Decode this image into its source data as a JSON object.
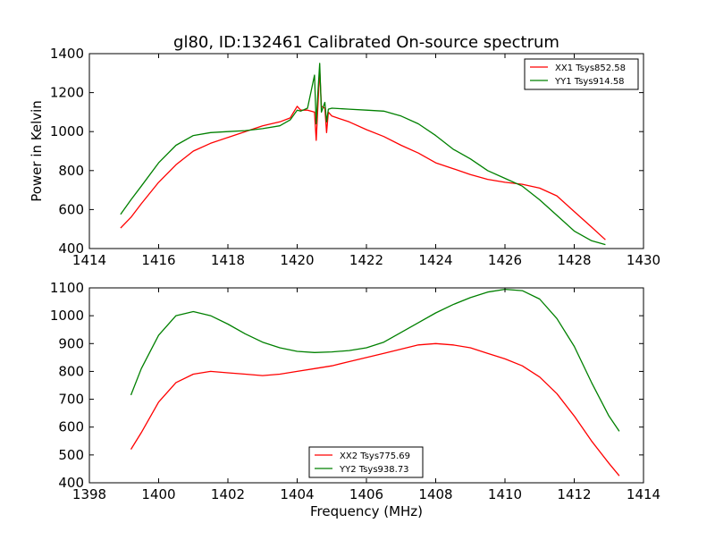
{
  "figure": {
    "title": "gl80, ID:132461 Calibrated On-source spectrum",
    "xlabel": "Frequency (MHz)",
    "ylabel": "Power in Kelvin"
  },
  "chart_data": [
    {
      "type": "line",
      "title": "gl80, ID:132461 Calibrated On-source spectrum",
      "ylabel": "Power in Kelvin",
      "xlim": [
        1414,
        1430
      ],
      "ylim": [
        400,
        1400
      ],
      "xticks": [
        1414,
        1416,
        1418,
        1420,
        1422,
        1424,
        1426,
        1428,
        1430
      ],
      "yticks": [
        400,
        600,
        800,
        1000,
        1200,
        1400
      ],
      "grid": false,
      "legend": "top-right",
      "series": [
        {
          "name": "XX1 Tsys852.58",
          "color": "#ff0000",
          "x": [
            1414.9,
            1415.2,
            1415.5,
            1416.0,
            1416.5,
            1417.0,
            1417.5,
            1418.0,
            1418.5,
            1419.0,
            1419.5,
            1419.8,
            1420.0,
            1420.1,
            1420.3,
            1420.5,
            1420.55,
            1420.6,
            1420.65,
            1420.7,
            1420.8,
            1420.85,
            1420.9,
            1421.0,
            1421.5,
            1422.0,
            1422.5,
            1423.0,
            1423.5,
            1424.0,
            1424.5,
            1425.0,
            1425.5,
            1426.0,
            1426.5,
            1427.0,
            1427.5,
            1428.0,
            1428.5,
            1428.9
          ],
          "y": [
            505,
            560,
            630,
            740,
            830,
            900,
            940,
            970,
            1000,
            1030,
            1050,
            1070,
            1130,
            1110,
            1110,
            1100,
            955,
            1130,
            1320,
            1130,
            1120,
            995,
            1100,
            1080,
            1050,
            1010,
            975,
            930,
            890,
            840,
            810,
            780,
            755,
            740,
            730,
            710,
            670,
            590,
            510,
            445
          ]
        },
        {
          "name": "YY1 Tsys914.58",
          "color": "#008000",
          "x": [
            1414.9,
            1415.2,
            1415.5,
            1416.0,
            1416.5,
            1417.0,
            1417.5,
            1418.0,
            1418.5,
            1419.0,
            1419.5,
            1419.8,
            1420.0,
            1420.1,
            1420.3,
            1420.5,
            1420.55,
            1420.6,
            1420.65,
            1420.7,
            1420.8,
            1420.85,
            1420.9,
            1421.0,
            1421.5,
            1422.0,
            1422.5,
            1423.0,
            1423.5,
            1424.0,
            1424.5,
            1425.0,
            1425.5,
            1426.0,
            1426.5,
            1427.0,
            1427.5,
            1428.0,
            1428.5,
            1428.9
          ],
          "y": [
            575,
            650,
            720,
            840,
            930,
            980,
            995,
            1000,
            1005,
            1015,
            1030,
            1060,
            1110,
            1105,
            1120,
            1290,
            1040,
            1200,
            1350,
            1100,
            1150,
            1050,
            1115,
            1120,
            1115,
            1110,
            1105,
            1080,
            1040,
            980,
            910,
            860,
            800,
            760,
            720,
            650,
            570,
            490,
            440,
            420
          ]
        }
      ]
    },
    {
      "type": "line",
      "xlabel": "Frequency (MHz)",
      "xlim": [
        1398,
        1414
      ],
      "ylim": [
        400,
        1100
      ],
      "xticks": [
        1398,
        1400,
        1402,
        1404,
        1406,
        1408,
        1410,
        1412,
        1414
      ],
      "yticks": [
        400,
        500,
        600,
        700,
        800,
        900,
        1000,
        1100
      ],
      "grid": false,
      "legend": "bottom-center",
      "series": [
        {
          "name": "XX2 Tsys775.69",
          "color": "#ff0000",
          "x": [
            1399.2,
            1399.5,
            1400.0,
            1400.5,
            1401.0,
            1401.5,
            1402.0,
            1402.5,
            1403.0,
            1403.5,
            1404.0,
            1404.5,
            1405.0,
            1405.5,
            1406.0,
            1406.5,
            1407.0,
            1407.5,
            1408.0,
            1408.5,
            1409.0,
            1409.5,
            1410.0,
            1410.5,
            1411.0,
            1411.5,
            1412.0,
            1412.5,
            1413.0,
            1413.3
          ],
          "y": [
            520,
            580,
            690,
            760,
            790,
            800,
            795,
            790,
            785,
            790,
            800,
            810,
            820,
            835,
            850,
            865,
            880,
            895,
            900,
            895,
            885,
            865,
            845,
            820,
            780,
            720,
            640,
            550,
            470,
            425
          ]
        },
        {
          "name": "YY2 Tsys938.73",
          "color": "#008000",
          "x": [
            1399.2,
            1399.5,
            1400.0,
            1400.5,
            1401.0,
            1401.5,
            1402.0,
            1402.5,
            1403.0,
            1403.5,
            1404.0,
            1404.5,
            1405.0,
            1405.5,
            1406.0,
            1406.5,
            1407.0,
            1407.5,
            1408.0,
            1408.5,
            1409.0,
            1409.5,
            1410.0,
            1410.5,
            1411.0,
            1411.5,
            1412.0,
            1412.5,
            1413.0,
            1413.3
          ],
          "y": [
            715,
            810,
            930,
            1000,
            1015,
            1000,
            970,
            935,
            905,
            885,
            872,
            868,
            870,
            875,
            885,
            905,
            940,
            975,
            1010,
            1040,
            1065,
            1085,
            1095,
            1090,
            1060,
            990,
            890,
            760,
            640,
            585
          ]
        }
      ]
    }
  ]
}
